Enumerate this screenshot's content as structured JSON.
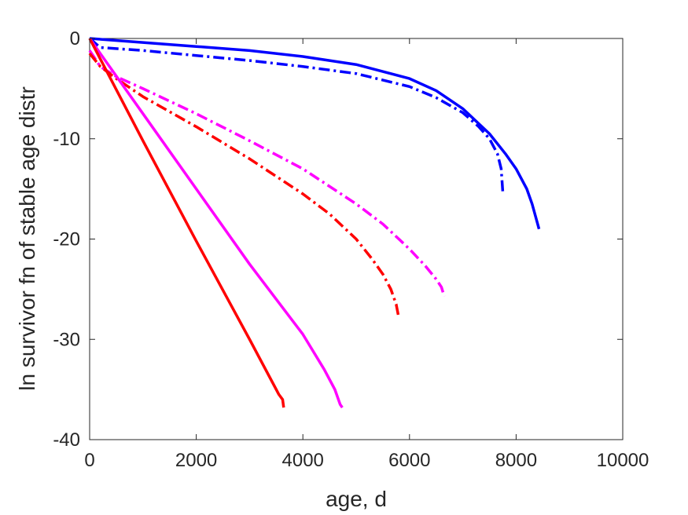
{
  "chart_data": {
    "type": "line",
    "xlabel": "age, d",
    "ylabel": "ln survivor fn of stable age distr",
    "xlim": [
      0,
      10000
    ],
    "ylim": [
      -40,
      0
    ],
    "xticks": [
      0,
      2000,
      4000,
      6000,
      8000,
      10000
    ],
    "yticks": [
      0,
      -10,
      -20,
      -30,
      -40
    ],
    "grid": false,
    "legend": "none",
    "series": [
      {
        "color": "#0000ff",
        "style": "solid",
        "x": [
          0,
          1000,
          2000,
          3000,
          4000,
          5000,
          6000,
          6500,
          7000,
          7500,
          7800,
          8000,
          8200,
          8300,
          8430
        ],
        "y": [
          0,
          -0.4,
          -0.8,
          -1.2,
          -1.8,
          -2.6,
          -4.0,
          -5.2,
          -7.0,
          -9.5,
          -11.5,
          -13.0,
          -15.0,
          -16.5,
          -19.0
        ]
      },
      {
        "color": "#0000ff",
        "style": "dashdot",
        "x": [
          0,
          200,
          1000,
          2000,
          3000,
          4000,
          5000,
          6000,
          6500,
          7000,
          7300,
          7500,
          7650,
          7720,
          7750
        ],
        "y": [
          0,
          -0.9,
          -1.2,
          -1.7,
          -2.2,
          -2.8,
          -3.5,
          -4.8,
          -5.9,
          -7.4,
          -8.8,
          -10.0,
          -11.5,
          -13.0,
          -15.3
        ]
      },
      {
        "color": "#ff00ff",
        "style": "dashdot",
        "x": [
          0,
          200,
          500,
          1000,
          2000,
          3000,
          4000,
          5000,
          5500,
          6000,
          6300,
          6500,
          6600,
          6650
        ],
        "y": [
          -1.2,
          -2.8,
          -3.8,
          -5.0,
          -7.5,
          -10.2,
          -13.0,
          -16.5,
          -18.5,
          -21.0,
          -22.7,
          -24.0,
          -24.8,
          -25.7
        ]
      },
      {
        "color": "#ff0000",
        "style": "dashdot",
        "x": [
          0,
          200,
          500,
          1000,
          2000,
          3000,
          4000,
          4500,
          5000,
          5300,
          5500,
          5650,
          5750,
          5790
        ],
        "y": [
          -1.5,
          -2.8,
          -4.0,
          -5.8,
          -8.8,
          -12.0,
          -15.5,
          -17.5,
          -20.0,
          -22.0,
          -23.5,
          -25.0,
          -26.5,
          -27.6
        ]
      },
      {
        "color": "#ff00ff",
        "style": "solid",
        "x": [
          0,
          1000,
          2000,
          3000,
          4000,
          4400,
          4600,
          4700,
          4740
        ],
        "y": [
          0,
          -7.5,
          -15.0,
          -22.5,
          -29.5,
          -33.0,
          -35.0,
          -36.5,
          -36.8
        ]
      },
      {
        "color": "#ff0000",
        "style": "solid",
        "x": [
          0,
          1000,
          2000,
          3000,
          3500,
          3550,
          3620,
          3640
        ],
        "y": [
          0,
          -10.2,
          -20.2,
          -30.0,
          -35.0,
          -35.5,
          -36.0,
          -36.8
        ]
      }
    ]
  }
}
